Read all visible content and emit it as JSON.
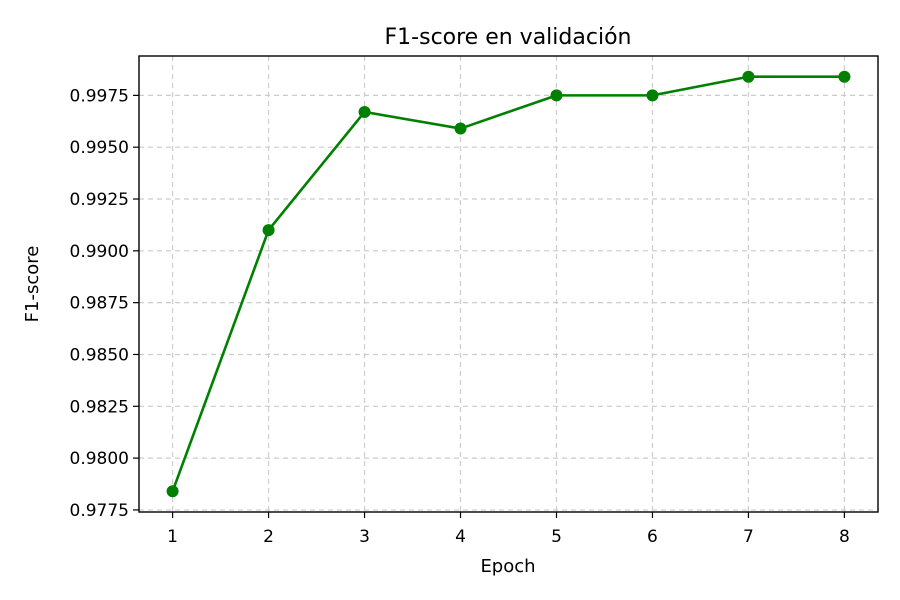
{
  "chart_data": {
    "type": "line",
    "title": "F1-score en validación",
    "xlabel": "Epoch",
    "ylabel": "F1-score",
    "x": [
      1,
      2,
      3,
      4,
      5,
      6,
      7,
      8
    ],
    "series": [
      {
        "values": [
          0.9784,
          0.991,
          0.9967,
          0.9959,
          0.9975,
          0.9975,
          0.9984,
          0.9984
        ],
        "color": "#008000",
        "marker": "circle"
      }
    ],
    "xlim": [
      0.65,
      8.35
    ],
    "ylim": [
      0.9774,
      0.9994
    ],
    "x_ticks": [
      1,
      2,
      3,
      4,
      5,
      6,
      7,
      8
    ],
    "y_ticks": [
      0.9775,
      0.98,
      0.9825,
      0.985,
      0.9875,
      0.99,
      0.9925,
      0.995,
      0.9975
    ],
    "y_tick_labels": [
      "0.9775",
      "0.9800",
      "0.9825",
      "0.9850",
      "0.9875",
      "0.9900",
      "0.9925",
      "0.9950",
      "0.9975"
    ],
    "grid": true,
    "grid_style": "dashed",
    "legend": null
  }
}
